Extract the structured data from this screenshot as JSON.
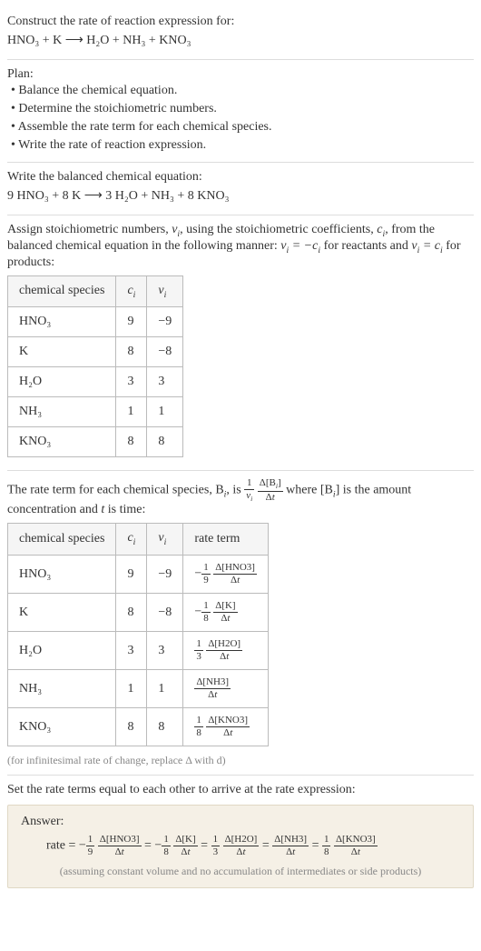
{
  "construct": {
    "heading": "Construct the rate of reaction expression for:",
    "reaction": "HNO₃ + K ⟶ H₂O + NH₃ + KNO₃"
  },
  "plan": {
    "heading": "Plan:",
    "b1": "• Balance the chemical equation.",
    "b2": "• Determine the stoichiometric numbers.",
    "b3": "• Assemble the rate term for each chemical species.",
    "b4": "• Write the rate of reaction expression."
  },
  "balanced": {
    "heading": "Write the balanced chemical equation:",
    "reaction": "9 HNO₃ + 8 K ⟶ 3 H₂O + NH₃ + 8 KNO₃"
  },
  "assign": {
    "text1": "Assign stoichiometric numbers, ",
    "text2": ", using the stoichiometric coefficients, ",
    "text3": ", from the balanced chemical equation in the following manner: ",
    "text4": " for reactants and ",
    "text5": " for products:",
    "col1": "chemical species",
    "col2": "cᵢ",
    "col3": "νᵢ",
    "r1c1": "HNO₃",
    "r1c2": "9",
    "r1c3": "−9",
    "r2c1": "K",
    "r2c2": "8",
    "r2c3": "−8",
    "r3c1": "H₂O",
    "r3c2": "3",
    "r3c3": "3",
    "r4c1": "NH₃",
    "r4c2": "1",
    "r4c3": "1",
    "r5c1": "KNO₃",
    "r5c2": "8",
    "r5c3": "8"
  },
  "rateterm": {
    "text1": "The rate term for each chemical species, B",
    "text2": ", is ",
    "text3": " where [B",
    "text4": "] is the amount concentration and ",
    "text5": " is time:",
    "col1": "chemical species",
    "col2": "cᵢ",
    "col3": "νᵢ",
    "col4": "rate term",
    "r1c1": "HNO₃",
    "r1c2": "9",
    "r1c3": "−9",
    "r2c1": "K",
    "r2c2": "8",
    "r2c3": "−8",
    "r3c1": "H₂O",
    "r3c2": "3",
    "r3c3": "3",
    "r4c1": "NH₃",
    "r4c2": "1",
    "r4c3": "1",
    "r5c1": "KNO₃",
    "r5c2": "8",
    "r5c3": "8",
    "note": "(for infinitesimal rate of change, replace Δ with d)"
  },
  "final": {
    "heading": "Set the rate terms equal to each other to arrive at the rate expression:",
    "answerLabel": "Answer:",
    "note": "(assuming constant volume and no accumulation of intermediates or side products)"
  },
  "style": {
    "bodyWidth": 530,
    "bg": "#ffffff",
    "text": "#333333",
    "border": "#dddddd",
    "tableBorder": "#bbbbbb",
    "answerBg": "#f5f0e6",
    "answerBorder": "#e0d8c5",
    "noteColor": "#888888",
    "baseFontSize": 14,
    "noteFontSize": 12,
    "fracFontSize": 11
  }
}
